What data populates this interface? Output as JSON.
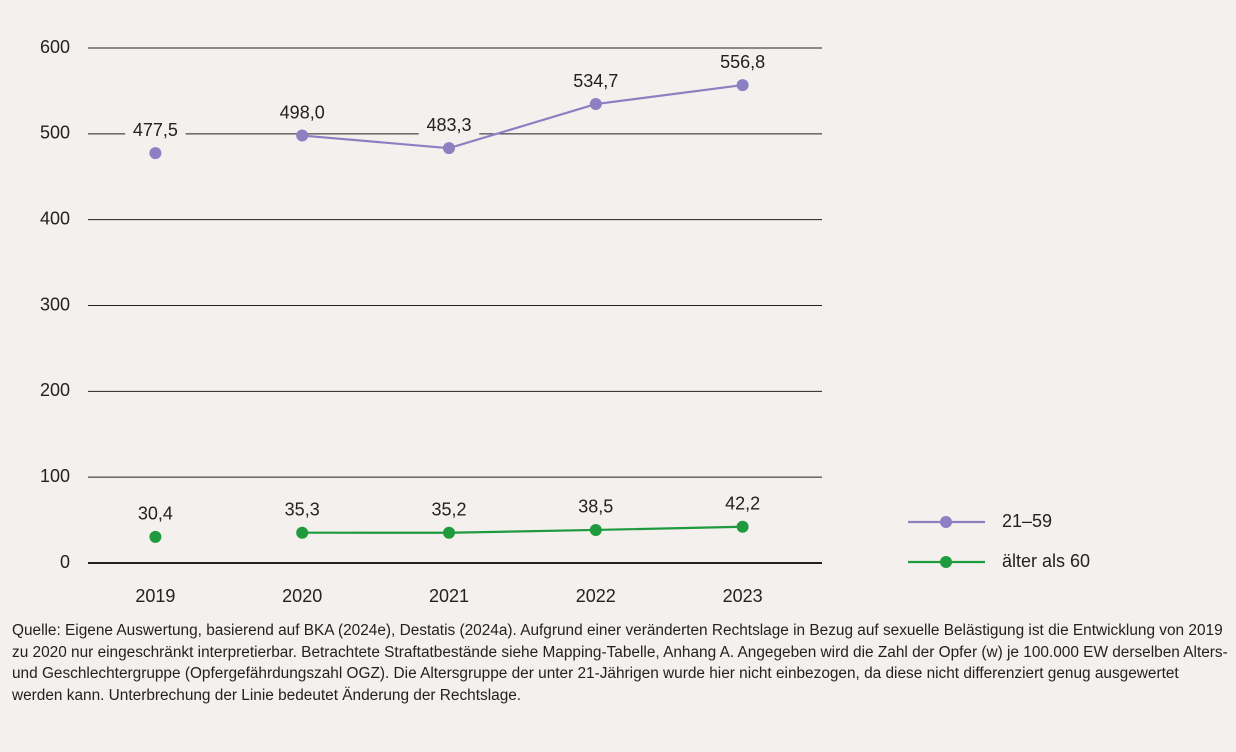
{
  "chart_data": {
    "type": "line",
    "categories": [
      "2019",
      "2020",
      "2021",
      "2022",
      "2023"
    ],
    "series": [
      {
        "name": "21–59",
        "color": "#8b80c2",
        "values": [
          477.5,
          498.0,
          483.3,
          534.7,
          556.8
        ],
        "value_labels": [
          "477,5",
          "498,0",
          "483,3",
          "534,7",
          "556,8"
        ]
      },
      {
        "name": "älter als 60",
        "color": "#1f9a3e",
        "values": [
          30.4,
          35.3,
          35.2,
          38.5,
          42.2
        ],
        "value_labels": [
          "30,4",
          "35,3",
          "35,2",
          "38,5",
          "42,2"
        ]
      }
    ],
    "first_point_detached": true,
    "ylim": [
      0,
      600
    ],
    "yticks": [
      0,
      100,
      200,
      300,
      400,
      500,
      600
    ],
    "grid": true,
    "legend": "right",
    "note": "Quelle: Eigene Auswertung, basierend auf BKA (2024e), Destatis (2024a). Aufgrund einer veränderten Rechtslage in Bezug auf sexuelle Belästigung ist die Entwicklung von 2019 zu 2020 nur eingeschränkt interpretierbar. Betrachtete Straftatbestände siehe Mapping-Tabelle, Anhang A. Angegeben wird die Zahl der Opfer (w) je 100.000 EW derselben Alters- und Geschlechtergruppe (Opfergefährdungszahl OGZ). Die Altersgruppe der unter 21-Jährigen wurde hier nicht einbezogen, da diese nicht differenziert genug ausgewertet werden kann. Unterbrechung der Linie bedeutet Änderung der Rechtslage."
  }
}
